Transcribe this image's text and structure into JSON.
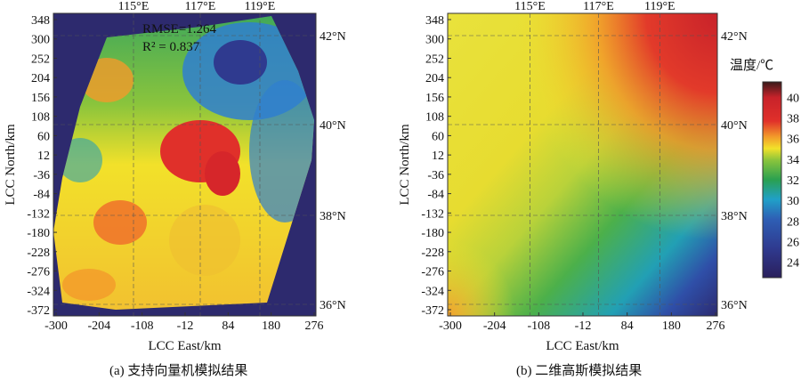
{
  "chart_data": [
    {
      "type": "heatmap",
      "title": "(a) 支持向量机模拟结果",
      "xlabel": "LCC East/km",
      "ylabel": "LCC North/km",
      "xticks": [
        -300,
        -204,
        -108,
        -12,
        84,
        180,
        276
      ],
      "yticks": [
        348,
        300,
        252,
        204,
        156,
        108,
        60,
        12,
        -36,
        -84,
        -132,
        -180,
        -228,
        -276,
        -324,
        -372
      ],
      "top_ticks": [
        "115°E",
        "117°E",
        "119°E"
      ],
      "right_ticks": [
        "42°N",
        "40°N",
        "38°N",
        "36°N"
      ],
      "xlim": [
        -300,
        300
      ],
      "ylim": [
        -384,
        372
      ],
      "annotations": [
        "RMSE=1.264",
        "R² = 0.837"
      ]
    },
    {
      "type": "heatmap",
      "title": "(b) 二维高斯模拟结果",
      "xlabel": "LCC East/km",
      "ylabel": "LCC North/km",
      "xticks": [
        -300,
        -204,
        -108,
        -12,
        84,
        180,
        276
      ],
      "yticks": [
        348,
        300,
        252,
        204,
        156,
        108,
        60,
        12,
        -36,
        -84,
        -132,
        -180,
        -228,
        -276,
        -324,
        -372
      ],
      "top_ticks": [
        "115°E",
        "117°E",
        "119°E"
      ],
      "right_ticks": [
        "42°N",
        "40°N",
        "38°N",
        "36°N"
      ],
      "xlim": [
        -300,
        300
      ],
      "ylim": [
        -384,
        372
      ],
      "colorbar": {
        "label": "温度/℃",
        "ticks": [
          40,
          38,
          36,
          34,
          32,
          30,
          28,
          26,
          24
        ],
        "range": [
          22.5,
          41.5
        ]
      }
    }
  ]
}
